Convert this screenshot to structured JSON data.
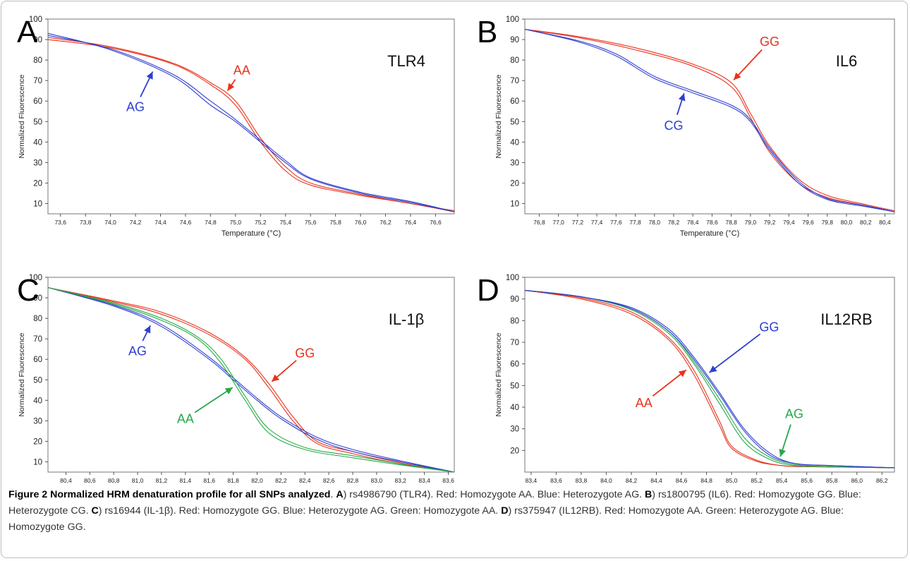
{
  "chart_data": [
    {
      "type": "line",
      "panel_label": "A",
      "gene": "TLR4",
      "xlabel": "Temperature (°C)",
      "ylabel": "Normalized Fluorescence",
      "xlim": [
        73.5,
        76.75
      ],
      "ylim": [
        5,
        100
      ],
      "x_ticks": [
        "73,6",
        "73,8",
        "74,0",
        "74,2",
        "74,4",
        "74,6",
        "74,8",
        "75,0",
        "75,2",
        "75,4",
        "75,6",
        "75,8",
        "76,0",
        "76,2",
        "76,4",
        "76,6"
      ],
      "y_ticks": [
        10,
        20,
        30,
        40,
        50,
        60,
        70,
        80,
        90,
        100
      ],
      "series": [
        {
          "color": "#e8331c",
          "x": [
            73.5,
            74.0,
            74.5,
            74.8,
            75.0,
            75.2,
            75.4,
            75.6,
            76.0,
            76.4,
            76.75
          ],
          "y": [
            90,
            86,
            78,
            68,
            58,
            40,
            26,
            19,
            14,
            10,
            6
          ]
        },
        {
          "color": "#e8331c",
          "x": [
            73.5,
            74.0,
            74.5,
            74.8,
            75.0,
            75.2,
            75.4,
            75.6,
            76.0,
            76.4,
            76.75
          ],
          "y": [
            91,
            86.5,
            78.5,
            69,
            60,
            42,
            28,
            20,
            14.5,
            10,
            6.5
          ]
        },
        {
          "color": "#2e3fd0",
          "x": [
            73.5,
            74.0,
            74.5,
            74.8,
            75.0,
            75.2,
            75.4,
            75.6,
            76.0,
            76.4,
            76.75
          ],
          "y": [
            93,
            85,
            72,
            58,
            50,
            40,
            30,
            22,
            15,
            10.5,
            6
          ]
        },
        {
          "color": "#2e3fd0",
          "x": [
            73.5,
            74.0,
            74.5,
            74.8,
            75.0,
            75.2,
            75.4,
            75.6,
            76.0,
            76.4,
            76.75
          ],
          "y": [
            92,
            85.5,
            73,
            60,
            51,
            41,
            31,
            22.5,
            15.5,
            11,
            6
          ]
        }
      ],
      "annotations": [
        {
          "text": "AA",
          "color": "#e8331c",
          "x": 75.05,
          "y": 73
        },
        {
          "text": "AG",
          "color": "#2e3fd0",
          "x": 74.2,
          "y": 55
        }
      ]
    },
    {
      "type": "line",
      "panel_label": "B",
      "gene": "IL6",
      "xlabel": "Temperature (°C)",
      "ylabel": "Normalized Fluorescence",
      "xlim": [
        76.65,
        80.5
      ],
      "ylim": [
        5,
        100
      ],
      "x_ticks": [
        "76,8",
        "77,0",
        "77,2",
        "77,4",
        "77,6",
        "77,8",
        "78,0",
        "78,2",
        "78,4",
        "78,6",
        "78,8",
        "79,0",
        "79,2",
        "79,4",
        "79,6",
        "79,8",
        "80,0",
        "80,2",
        "80,4"
      ],
      "y_ticks": [
        10,
        20,
        30,
        40,
        50,
        60,
        70,
        80,
        90,
        100
      ],
      "series": [
        {
          "color": "#e8331c",
          "x": [
            76.65,
            77.2,
            77.8,
            78.4,
            78.8,
            79.0,
            79.2,
            79.5,
            79.8,
            80.2,
            80.5
          ],
          "y": [
            95,
            91,
            85,
            77,
            67,
            52,
            35,
            20,
            13,
            9,
            6
          ]
        },
        {
          "color": "#e8331c",
          "x": [
            76.65,
            77.2,
            77.8,
            78.4,
            78.8,
            79.0,
            79.2,
            79.5,
            79.8,
            80.2,
            80.5
          ],
          "y": [
            95,
            91.5,
            86,
            78,
            69,
            54,
            38,
            22,
            14,
            9.5,
            6.5
          ]
        },
        {
          "color": "#2e3fd0",
          "x": [
            76.65,
            77.2,
            77.6,
            78.0,
            78.4,
            78.8,
            79.0,
            79.2,
            79.5,
            79.8,
            80.2,
            80.5
          ],
          "y": [
            95,
            89,
            82,
            71,
            64,
            57,
            50,
            36,
            20,
            12,
            8.5,
            6
          ]
        },
        {
          "color": "#2e3fd0",
          "x": [
            76.65,
            77.2,
            77.6,
            78.0,
            78.4,
            78.8,
            79.0,
            79.2,
            79.5,
            79.8,
            80.2,
            80.5
          ],
          "y": [
            95,
            89.5,
            83,
            72,
            65,
            58,
            51,
            37,
            21,
            12.5,
            9,
            6
          ]
        }
      ],
      "annotations": [
        {
          "text": "GG",
          "color": "#e8331c",
          "x": 79.2,
          "y": 87
        },
        {
          "text": "CG",
          "color": "#2e3fd0",
          "x": 78.2,
          "y": 46
        }
      ]
    },
    {
      "type": "line",
      "panel_label": "C",
      "gene": "IL-1β",
      "xlabel": "Temperature (°C)",
      "ylabel": "Normalized Fluorescence",
      "xlim": [
        80.25,
        83.65
      ],
      "ylim": [
        5,
        100
      ],
      "x_ticks": [
        "80,4",
        "80,6",
        "80,8",
        "81,0",
        "81,2",
        "81,4",
        "81,6",
        "81,8",
        "82,0",
        "82,2",
        "82,4",
        "82,6",
        "82,8",
        "83,0",
        "83,2",
        "83,4",
        "83,6"
      ],
      "y_ticks": [
        10,
        20,
        30,
        40,
        50,
        60,
        70,
        80,
        90,
        100
      ],
      "series": [
        {
          "color": "#e8331c",
          "x": [
            80.25,
            80.8,
            81.2,
            81.6,
            81.9,
            82.1,
            82.3,
            82.5,
            82.8,
            83.2,
            83.65
          ],
          "y": [
            95,
            88,
            82,
            72,
            60,
            46,
            30,
            19,
            14,
            9,
            5
          ]
        },
        {
          "color": "#e8331c",
          "x": [
            80.25,
            80.8,
            81.2,
            81.6,
            81.9,
            82.1,
            82.3,
            82.5,
            82.8,
            83.2,
            83.65
          ],
          "y": [
            95,
            88.5,
            83,
            73,
            61,
            48,
            32,
            20,
            15,
            9.5,
            5
          ]
        },
        {
          "color": "#2e3fd0",
          "x": [
            80.25,
            80.8,
            81.2,
            81.6,
            81.8,
            82.0,
            82.2,
            82.5,
            82.8,
            83.2,
            83.65
          ],
          "y": [
            95,
            86,
            76,
            60,
            50,
            40,
            31,
            21,
            15,
            10,
            5
          ]
        },
        {
          "color": "#2e3fd0",
          "x": [
            80.25,
            80.8,
            81.2,
            81.6,
            81.8,
            82.0,
            82.2,
            82.5,
            82.8,
            83.2,
            83.65
          ],
          "y": [
            95,
            86.5,
            77,
            61,
            51,
            41,
            32,
            22,
            16,
            10.5,
            5
          ]
        },
        {
          "color": "#27a84a",
          "x": [
            80.25,
            80.8,
            81.2,
            81.5,
            81.7,
            81.9,
            82.1,
            82.4,
            82.8,
            83.2,
            83.65
          ],
          "y": [
            95,
            87,
            79,
            70,
            58,
            40,
            24,
            16,
            12,
            8.5,
            5
          ]
        },
        {
          "color": "#27a84a",
          "x": [
            80.25,
            80.8,
            81.2,
            81.5,
            81.7,
            81.9,
            82.1,
            82.4,
            82.8,
            83.2,
            83.65
          ],
          "y": [
            95,
            87.5,
            80,
            71,
            60,
            42,
            26,
            17,
            13,
            9,
            5
          ]
        }
      ],
      "annotations": [
        {
          "text": "GG",
          "color": "#e8331c",
          "x": 82.4,
          "y": 61
        },
        {
          "text": "AG",
          "color": "#2e3fd0",
          "x": 81.0,
          "y": 62
        },
        {
          "text": "AA",
          "color": "#27a84a",
          "x": 81.4,
          "y": 29
        }
      ]
    },
    {
      "type": "line",
      "panel_label": "D",
      "gene": "IL12RB",
      "xlabel": "Temperature (°C)",
      "ylabel": "Normalized Fluorescence",
      "xlim": [
        83.35,
        86.3
      ],
      "ylim": [
        10,
        100
      ],
      "x_ticks": [
        "83,4",
        "83,6",
        "83,8",
        "84,0",
        "84,2",
        "84,4",
        "84,6",
        "84,8",
        "85,0",
        "85,2",
        "85,4",
        "85,6",
        "85,8",
        "86,0",
        "86,2"
      ],
      "y_ticks": [
        20,
        30,
        40,
        50,
        60,
        70,
        80,
        90,
        100
      ],
      "series": [
        {
          "color": "#e8331c",
          "x": [
            83.35,
            83.8,
            84.2,
            84.5,
            84.7,
            84.9,
            85.0,
            85.2,
            85.4,
            85.6,
            86.3
          ],
          "y": [
            94,
            90,
            83,
            71,
            55,
            32,
            21,
            15,
            13,
            12.5,
            12
          ]
        },
        {
          "color": "#e8331c",
          "x": [
            83.35,
            83.8,
            84.2,
            84.5,
            84.7,
            84.9,
            85.0,
            85.2,
            85.4,
            85.6,
            86.3
          ],
          "y": [
            94,
            90.5,
            84,
            72,
            57,
            34,
            22,
            15.5,
            13,
            12.5,
            12
          ]
        },
        {
          "color": "#27a84a",
          "x": [
            83.35,
            83.8,
            84.2,
            84.5,
            84.7,
            84.9,
            85.1,
            85.3,
            85.5,
            85.8,
            86.3
          ],
          "y": [
            94,
            91,
            85,
            74,
            60,
            42,
            24,
            16,
            13,
            12.5,
            12
          ]
        },
        {
          "color": "#27a84a",
          "x": [
            83.35,
            83.8,
            84.2,
            84.5,
            84.7,
            84.9,
            85.1,
            85.3,
            85.5,
            85.8,
            86.3
          ],
          "y": [
            94,
            91,
            85.5,
            75,
            61,
            44,
            26,
            17,
            13.5,
            12.5,
            12
          ]
        },
        {
          "color": "#2e3fd0",
          "x": [
            83.35,
            83.8,
            84.2,
            84.5,
            84.7,
            84.9,
            85.1,
            85.3,
            85.5,
            85.8,
            86.3
          ],
          "y": [
            94,
            91,
            85.5,
            75,
            62,
            46,
            29,
            18,
            14,
            13,
            12
          ]
        },
        {
          "color": "#2e3fd0",
          "x": [
            83.35,
            83.8,
            84.2,
            84.5,
            84.7,
            84.9,
            85.1,
            85.3,
            85.5,
            85.8,
            86.3
          ],
          "y": [
            94,
            91,
            86,
            76,
            63,
            47,
            30,
            19,
            14,
            13,
            12
          ]
        }
      ],
      "annotations": [
        {
          "text": "GG",
          "color": "#2e3fd0",
          "x": 85.3,
          "y": 75
        },
        {
          "text": "AA",
          "color": "#e8331c",
          "x": 84.3,
          "y": 40
        },
        {
          "text": "AG",
          "color": "#27a84a",
          "x": 85.5,
          "y": 35
        }
      ]
    }
  ],
  "caption": {
    "title": "Figure 2 Normalized HRM denaturation profile for all SNPs analyzed",
    "a_label": "A",
    "a_text": ") rs4986790 (TLR4). Red: Homozygote AA. Blue: Heterozygote AG.",
    "b_label": "B",
    "b_text": ") rs1800795 (IL6). Red: Homozygote GG. Blue: Heterozygote CG.",
    "c_label": "C",
    "c_text": ") rs16944 (IL-1β). Red: Homozygote GG. Blue: Heterozygote AG. Green: Homozygote AA.",
    "d_label": "D",
    "d_text": ") rs375947 (IL12RB). Red: Homozygote AA. Green: Heterozygote AG. Blue: Homozygote GG."
  },
  "colors": {
    "red": "#e8331c",
    "blue": "#2e3fd0",
    "green": "#27a84a",
    "axis": "#555555",
    "grid": "#dddddd"
  }
}
